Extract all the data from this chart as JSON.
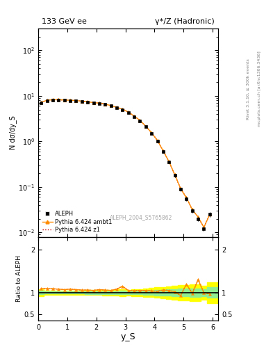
{
  "title_left": "133 GeV ee",
  "title_right": "γ*/Z (Hadronic)",
  "ylabel_main": "N dσ/dy_S",
  "xlabel": "y_S",
  "ylabel_ratio": "Ratio to ALEPH",
  "right_label_top": "Rivet 3.1.10, ≥ 300k events",
  "right_label_bot": "mcplots.cern.ch [arXiv:1306.3436]",
  "watermark": "ALEPH_2004_S5765862",
  "data_x": [
    0.1,
    0.3,
    0.5,
    0.7,
    0.9,
    1.1,
    1.3,
    1.5,
    1.7,
    1.9,
    2.1,
    2.3,
    2.5,
    2.7,
    2.9,
    3.1,
    3.3,
    3.5,
    3.7,
    3.9,
    4.1,
    4.3,
    4.5,
    4.7,
    4.9,
    5.1,
    5.3,
    5.5,
    5.7,
    5.9
  ],
  "data_y": [
    7.0,
    7.8,
    8.0,
    8.1,
    8.0,
    7.9,
    7.8,
    7.5,
    7.3,
    7.0,
    6.8,
    6.5,
    6.0,
    5.5,
    5.0,
    4.3,
    3.5,
    2.8,
    2.1,
    1.5,
    1.0,
    0.6,
    0.35,
    0.18,
    0.09,
    0.055,
    0.03,
    0.02,
    0.012,
    0.025
  ],
  "data_yerr": [
    0.3,
    0.2,
    0.2,
    0.2,
    0.2,
    0.2,
    0.2,
    0.2,
    0.2,
    0.2,
    0.2,
    0.2,
    0.2,
    0.2,
    0.2,
    0.15,
    0.15,
    0.12,
    0.1,
    0.08,
    0.06,
    0.04,
    0.025,
    0.015,
    0.008,
    0.005,
    0.003,
    0.002,
    0.001,
    0.003
  ],
  "mc1_x": [
    0.1,
    0.3,
    0.5,
    0.7,
    0.9,
    1.1,
    1.3,
    1.5,
    1.7,
    1.9,
    2.1,
    2.3,
    2.5,
    2.7,
    2.9,
    3.1,
    3.3,
    3.5,
    3.7,
    3.9,
    4.1,
    4.3,
    4.5,
    4.7,
    4.9,
    5.1,
    5.3,
    5.5,
    5.7,
    5.9
  ],
  "mc1_y": [
    7.2,
    8.0,
    8.2,
    8.2,
    8.1,
    8.0,
    7.9,
    7.6,
    7.4,
    7.1,
    6.9,
    6.6,
    6.1,
    5.6,
    5.1,
    4.4,
    3.6,
    2.9,
    2.15,
    1.55,
    1.05,
    0.62,
    0.36,
    0.185,
    0.092,
    0.058,
    0.032,
    0.022,
    0.013,
    0.025
  ],
  "mc2_y": [
    7.2,
    8.0,
    8.2,
    8.2,
    8.1,
    8.0,
    7.9,
    7.6,
    7.4,
    7.1,
    6.9,
    6.6,
    6.1,
    5.6,
    5.1,
    4.4,
    3.6,
    2.9,
    2.15,
    1.55,
    1.05,
    0.62,
    0.36,
    0.185,
    0.092,
    0.058,
    0.032,
    0.022,
    0.013,
    0.025
  ],
  "ratio1_y": [
    1.1,
    1.09,
    1.09,
    1.08,
    1.07,
    1.08,
    1.07,
    1.06,
    1.06,
    1.05,
    1.07,
    1.06,
    1.05,
    1.08,
    1.15,
    1.05,
    1.04,
    1.05,
    1.05,
    1.04,
    1.03,
    1.06,
    1.05,
    1.02,
    0.93,
    1.2,
    0.98,
    1.3,
    1.0,
    0.97
  ],
  "ratio2_y": [
    1.1,
    1.09,
    1.09,
    1.08,
    1.07,
    1.08,
    1.07,
    1.06,
    1.06,
    1.05,
    1.07,
    1.06,
    1.05,
    1.08,
    1.15,
    1.05,
    1.04,
    1.05,
    1.05,
    1.04,
    1.03,
    1.06,
    1.05,
    1.02,
    0.93,
    1.2,
    0.98,
    1.3,
    1.0,
    0.97
  ],
  "mc1_color": "#ff8c00",
  "mc2_color": "#cc0000",
  "data_color": "#000000",
  "xlim": [
    0,
    6.2
  ],
  "ylim_main": [
    0.008,
    300
  ],
  "ylim_ratio": [
    0.35,
    2.3
  ],
  "ratio_yticks": [
    0.5,
    1.0,
    2.0
  ],
  "ratio_yticklabels": [
    "0.5",
    "1",
    "2"
  ]
}
